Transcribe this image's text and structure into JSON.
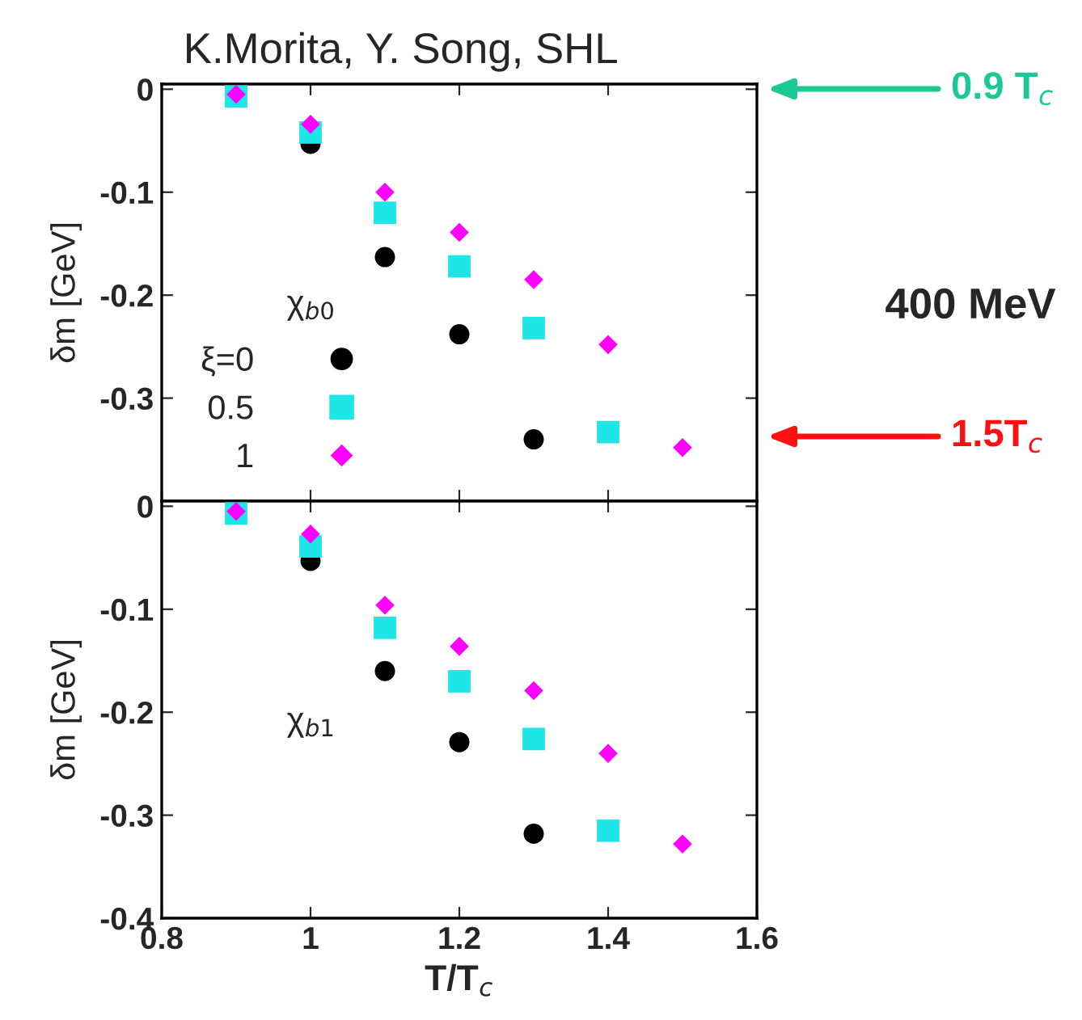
{
  "chart_data": [
    {
      "type": "scatter",
      "title": "K.Morita, Y. Song, SHL",
      "ylabel": "δm [GeV]",
      "x": [
        0.9,
        1.0,
        1.1,
        1.2,
        1.3,
        1.4,
        1.5
      ],
      "series": [
        {
          "name": "ξ=0",
          "color": "#000000",
          "marker": "circle",
          "values": [
            null,
            -0.053,
            -0.163,
            -0.238,
            -0.34,
            null,
            null
          ]
        },
        {
          "name": "0.5",
          "color": "#1ee6e6",
          "marker": "square",
          "values": [
            -0.007,
            -0.042,
            -0.12,
            -0.172,
            -0.232,
            -0.333,
            null
          ]
        },
        {
          "name": "1",
          "color": "#ff00ff",
          "marker": "diamond",
          "values": [
            -0.005,
            -0.034,
            -0.1,
            -0.139,
            -0.185,
            -0.248,
            -0.348
          ]
        }
      ],
      "xlim": [
        0.8,
        1.6
      ],
      "xticks": [
        0.8,
        1,
        1.2,
        1.4,
        1.6
      ],
      "ylim": [
        -0.4,
        0.005
      ],
      "yticks": [
        -0.3,
        -0.2,
        -0.1,
        0
      ],
      "tick_labels": "y",
      "legend": "bottom left",
      "grid": false,
      "annotations": [
        "χ$_{b0}$",
        "0.9 T$_{c}$",
        "1.5T$_{c}$",
        "400 MeV"
      ]
    },
    {
      "type": "scatter",
      "xlabel": "T/T$_{c}$",
      "ylabel": "δm [GeV]",
      "x": [
        0.9,
        1.0,
        1.1,
        1.2,
        1.3,
        1.4,
        1.5
      ],
      "series": [
        {
          "color": "#000000",
          "marker": "circle",
          "values": [
            null,
            -0.053,
            -0.16,
            -0.229,
            -0.318,
            null,
            null
          ]
        },
        {
          "color": "#1ee6e6",
          "marker": "square",
          "values": [
            -0.007,
            -0.039,
            -0.118,
            -0.17,
            -0.226,
            -0.315,
            null
          ]
        },
        {
          "color": "#ff00ff",
          "marker": "diamond",
          "values": [
            -0.005,
            -0.027,
            -0.096,
            -0.136,
            -0.179,
            -0.24,
            -0.328
          ]
        }
      ],
      "xlim": [
        0.8,
        1.6
      ],
      "xticks": [
        0.8,
        1,
        1.2,
        1.4,
        1.6
      ],
      "ylim": [
        -0.4,
        0.005
      ],
      "yticks": [
        -0.4,
        -0.3,
        -0.2,
        -0.1,
        0
      ],
      "grid": false,
      "annotations": [
        "χ$_{b1}$"
      ]
    }
  ]
}
